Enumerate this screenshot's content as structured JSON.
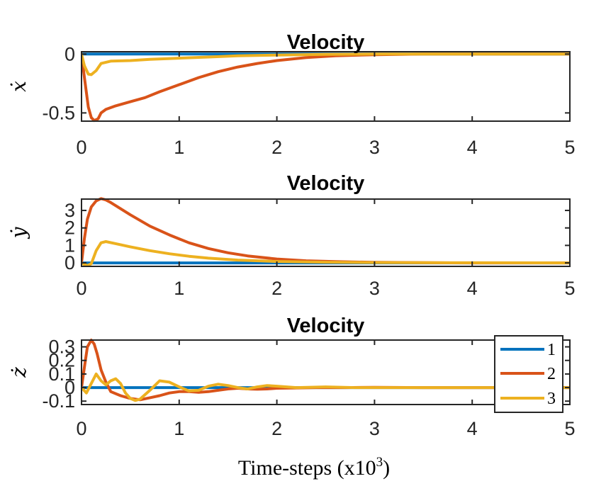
{
  "colors": {
    "s1": "#0072BD",
    "s2": "#D95319",
    "s3": "#EDB120"
  },
  "xlabel": {
    "prefix": "Time-steps (x10",
    "exp": "3",
    "suffix": ")"
  },
  "legend": [
    "1",
    "2",
    "3"
  ],
  "chart_data": [
    {
      "type": "line",
      "title": "Velocity",
      "ylabel": "ẋ",
      "xlim": [
        0,
        5
      ],
      "ylim": [
        -0.57,
        0.02
      ],
      "xticks": [
        "0",
        "1",
        "2",
        "3",
        "4",
        "5"
      ],
      "yticks": [
        {
          "value": 0,
          "label": "0"
        },
        {
          "value": -0.5,
          "label": "-0.5"
        }
      ],
      "series": [
        {
          "name": "1",
          "x": [
            0,
            5
          ],
          "y": [
            0,
            0
          ]
        },
        {
          "name": "2",
          "x": [
            0,
            0.03,
            0.07,
            0.1,
            0.13,
            0.17,
            0.2,
            0.25,
            0.35,
            0.5,
            0.65,
            0.8,
            1.0,
            1.2,
            1.4,
            1.6,
            1.8,
            2.0,
            2.3,
            2.6,
            3.0,
            3.5,
            4.0,
            5.0
          ],
          "y": [
            0,
            -0.2,
            -0.45,
            -0.54,
            -0.565,
            -0.55,
            -0.5,
            -0.47,
            -0.44,
            -0.405,
            -0.37,
            -0.32,
            -0.26,
            -0.2,
            -0.15,
            -0.11,
            -0.08,
            -0.055,
            -0.03,
            -0.015,
            -0.005,
            0,
            0,
            0
          ]
        },
        {
          "name": "3",
          "x": [
            0,
            0.03,
            0.07,
            0.1,
            0.15,
            0.2,
            0.3,
            0.5,
            0.7,
            1.0,
            1.3,
            1.6,
            2.0,
            2.5,
            3.0,
            5.0
          ],
          "y": [
            0,
            -0.1,
            -0.17,
            -0.175,
            -0.14,
            -0.08,
            -0.06,
            -0.055,
            -0.045,
            -0.035,
            -0.025,
            -0.015,
            -0.008,
            -0.003,
            0,
            0
          ]
        }
      ]
    },
    {
      "type": "line",
      "title": "Velocity",
      "ylabel": "ẏ",
      "xlim": [
        0,
        5
      ],
      "ylim": [
        -0.2,
        3.65
      ],
      "xticks": [
        "0",
        "1",
        "2",
        "3",
        "4",
        "5"
      ],
      "yticks": [
        {
          "value": 0,
          "label": "0"
        },
        {
          "value": 1,
          "label": "1"
        },
        {
          "value": 2,
          "label": "2"
        },
        {
          "value": 3,
          "label": "3"
        }
      ],
      "series": [
        {
          "name": "1",
          "x": [
            0,
            5
          ],
          "y": [
            0,
            0
          ]
        },
        {
          "name": "2",
          "x": [
            0,
            0.03,
            0.06,
            0.1,
            0.15,
            0.2,
            0.25,
            0.3,
            0.4,
            0.5,
            0.7,
            0.9,
            1.1,
            1.3,
            1.5,
            1.7,
            2.0,
            2.3,
            2.6,
            3.0,
            3.5,
            4.0,
            5.0
          ],
          "y": [
            0,
            1.4,
            2.5,
            3.2,
            3.55,
            3.68,
            3.6,
            3.45,
            3.1,
            2.75,
            2.1,
            1.6,
            1.15,
            0.82,
            0.58,
            0.4,
            0.22,
            0.12,
            0.07,
            0.03,
            0.01,
            0,
            0
          ]
        },
        {
          "name": "3",
          "x": [
            0,
            0.03,
            0.06,
            0.1,
            0.15,
            0.2,
            0.25,
            0.35,
            0.5,
            0.7,
            0.9,
            1.1,
            1.3,
            1.6,
            2.0,
            2.5,
            3.0,
            4.0,
            5.0
          ],
          "y": [
            0,
            -0.1,
            -0.15,
            -0.05,
            0.7,
            1.15,
            1.22,
            1.1,
            0.92,
            0.7,
            0.52,
            0.38,
            0.27,
            0.16,
            0.08,
            0.04,
            0.02,
            0.005,
            0
          ]
        }
      ]
    },
    {
      "type": "line",
      "title": "Velocity",
      "ylabel": "ż",
      "xlim": [
        0,
        5
      ],
      "ylim": [
        -0.125,
        0.35
      ],
      "xticks": [
        "0",
        "1",
        "2",
        "3",
        "4",
        "5"
      ],
      "yticks": [
        {
          "value": 0.3,
          "label": "0.3"
        },
        {
          "value": 0.2,
          "label": "0.2"
        },
        {
          "value": 0.1,
          "label": "0.1"
        },
        {
          "value": 0,
          "label": "0"
        },
        {
          "value": -0.1,
          "label": "-0.1"
        }
      ],
      "series": [
        {
          "name": "1",
          "x": [
            0,
            5
          ],
          "y": [
            0,
            0
          ]
        },
        {
          "name": "2",
          "x": [
            0,
            0.03,
            0.06,
            0.1,
            0.13,
            0.16,
            0.2,
            0.25,
            0.3,
            0.4,
            0.5,
            0.6,
            0.7,
            0.8,
            0.9,
            1.0,
            1.1,
            1.2,
            1.3,
            1.4,
            1.5,
            1.6,
            1.7,
            1.8,
            1.9,
            2.0,
            2.2,
            2.4,
            2.7,
            3.0,
            3.5,
            4.0,
            5.0
          ],
          "y": [
            0,
            0.15,
            0.3,
            0.35,
            0.32,
            0.25,
            0.13,
            0.04,
            -0.03,
            -0.06,
            -0.08,
            -0.09,
            -0.075,
            -0.06,
            -0.04,
            -0.03,
            -0.03,
            -0.035,
            -0.03,
            -0.02,
            -0.01,
            -0.005,
            -0.01,
            -0.012,
            -0.01,
            -0.005,
            -0.003,
            0,
            0,
            0.002,
            0,
            0,
            0
          ]
        },
        {
          "name": "3",
          "x": [
            0,
            0.05,
            0.1,
            0.15,
            0.2,
            0.25,
            0.3,
            0.35,
            0.4,
            0.45,
            0.5,
            0.55,
            0.6,
            0.7,
            0.8,
            0.9,
            1.0,
            1.1,
            1.2,
            1.3,
            1.4,
            1.5,
            1.6,
            1.7,
            1.8,
            1.9,
            2.0,
            2.2,
            2.5,
            2.8,
            3.0,
            3.5,
            4.0,
            5.0
          ],
          "y": [
            0,
            -0.04,
            0.03,
            0.1,
            0.05,
            0.02,
            0.05,
            0.065,
            0.03,
            -0.04,
            -0.08,
            -0.095,
            -0.085,
            -0.02,
            0.05,
            0.04,
            0.005,
            -0.025,
            -0.02,
            0.01,
            0.025,
            0.015,
            0,
            -0.01,
            0.005,
            0.015,
            0.01,
            0,
            0.005,
            0,
            0,
            0,
            0,
            0
          ]
        }
      ]
    }
  ]
}
